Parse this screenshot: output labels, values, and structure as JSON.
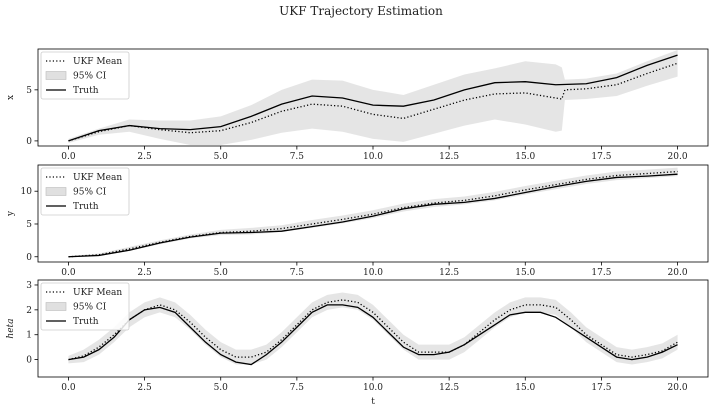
{
  "title": "UKF Trajectory Estimation",
  "chart_data": [
    {
      "type": "line",
      "ylabel": "x",
      "xlabel": "",
      "xlim": [
        -1.0,
        21.0
      ],
      "ylim": [
        -0.5,
        9.0
      ],
      "xticks": [
        0.0,
        2.5,
        5.0,
        7.5,
        10.0,
        12.5,
        15.0,
        17.5,
        20.0
      ],
      "xtick_labels": [
        "0.0",
        "2.5",
        "5.0",
        "7.5",
        "10.0",
        "12.5",
        "15.0",
        "17.5",
        "20.0"
      ],
      "yticks": [
        0,
        5
      ],
      "ytick_labels": [
        "0",
        "5"
      ],
      "legend_position": "top-left",
      "series": [
        {
          "name": "UKF Mean",
          "style": "dotted",
          "x": [
            0,
            1,
            2,
            3,
            4,
            5,
            6,
            7,
            8,
            9,
            10,
            11,
            12,
            13,
            14,
            15,
            16,
            16.2,
            16.3,
            17,
            18,
            19,
            20
          ],
          "y": [
            0,
            0.9,
            1.5,
            1.1,
            0.8,
            1.0,
            1.8,
            2.9,
            3.6,
            3.4,
            2.6,
            2.2,
            3.1,
            4.0,
            4.6,
            4.7,
            4.2,
            4.1,
            5.0,
            5.1,
            5.5,
            6.6,
            7.6
          ]
        },
        {
          "name": "Truth",
          "style": "solid",
          "x": [
            0,
            1,
            2,
            3,
            4,
            5,
            6,
            7,
            8,
            9,
            10,
            11,
            12,
            13,
            14,
            15,
            16,
            17,
            18,
            19,
            20
          ],
          "y": [
            0,
            1.0,
            1.5,
            1.2,
            1.1,
            1.4,
            2.4,
            3.6,
            4.4,
            4.2,
            3.5,
            3.4,
            4.0,
            5.0,
            5.7,
            5.8,
            5.5,
            5.6,
            6.2,
            7.4,
            8.4
          ]
        },
        {
          "name": "95% CI",
          "style": "band",
          "x": [
            0,
            1,
            2,
            3,
            4,
            5,
            6,
            7,
            8,
            9,
            10,
            11,
            12,
            13,
            14,
            15,
            16,
            16.2,
            16.3,
            17,
            18,
            19,
            20
          ],
          "lower": [
            -0.2,
            0.6,
            0.9,
            0.2,
            -0.4,
            -0.4,
            0.1,
            0.8,
            1.2,
            0.9,
            0.2,
            -0.1,
            0.7,
            1.5,
            2.1,
            1.6,
            0.9,
            1.0,
            4.0,
            4.1,
            4.4,
            5.4,
            6.3
          ],
          "upper": [
            0.2,
            1.2,
            2.1,
            2.0,
            2.0,
            2.4,
            3.5,
            5.0,
            6.0,
            5.9,
            5.0,
            4.5,
            5.5,
            6.5,
            7.1,
            7.8,
            7.5,
            7.2,
            6.0,
            6.1,
            6.6,
            7.8,
            8.9
          ]
        }
      ]
    },
    {
      "type": "line",
      "ylabel": "y",
      "xlabel": "",
      "xlim": [
        -1.0,
        21.0
      ],
      "ylim": [
        -0.8,
        14.0
      ],
      "xticks": [
        0.0,
        2.5,
        5.0,
        7.5,
        10.0,
        12.5,
        15.0,
        17.5,
        20.0
      ],
      "xtick_labels": [
        "0.0",
        "2.5",
        "5.0",
        "7.5",
        "10.0",
        "12.5",
        "15.0",
        "17.5",
        "20.0"
      ],
      "yticks": [
        0,
        5,
        10
      ],
      "ytick_labels": [
        "0",
        "5",
        "10"
      ],
      "legend_position": "top-left",
      "series": [
        {
          "name": "UKF Mean",
          "style": "dotted",
          "x": [
            0,
            1,
            2,
            3,
            4,
            5,
            6,
            7,
            8,
            9,
            10,
            11,
            12,
            13,
            14,
            15,
            16,
            17,
            18,
            19,
            20
          ],
          "y": [
            0,
            0.3,
            1.2,
            2.2,
            3.1,
            3.7,
            3.9,
            4.3,
            5.0,
            5.7,
            6.5,
            7.5,
            8.2,
            8.6,
            9.3,
            10.2,
            11.0,
            11.8,
            12.4,
            12.7,
            13.0
          ]
        },
        {
          "name": "Truth",
          "style": "solid",
          "x": [
            0,
            1,
            2,
            3,
            4,
            5,
            6,
            7,
            8,
            9,
            10,
            11,
            12,
            13,
            14,
            15,
            16,
            17,
            18,
            19,
            20
          ],
          "y": [
            0,
            0.2,
            1.0,
            2.1,
            3.0,
            3.6,
            3.7,
            3.9,
            4.6,
            5.3,
            6.2,
            7.3,
            8.0,
            8.3,
            8.9,
            9.8,
            10.7,
            11.5,
            12.1,
            12.3,
            12.6
          ]
        },
        {
          "name": "95% CI",
          "style": "band",
          "x": [
            0,
            1,
            2,
            3,
            4,
            5,
            6,
            7,
            8,
            9,
            10,
            11,
            12,
            13,
            14,
            15,
            16,
            17,
            18,
            19,
            20
          ],
          "lower": [
            -0.1,
            0.1,
            0.9,
            1.9,
            2.8,
            3.3,
            3.4,
            3.8,
            4.4,
            5.1,
            5.9,
            6.9,
            7.6,
            8.0,
            8.6,
            9.5,
            10.3,
            11.1,
            11.7,
            12.0,
            12.3
          ],
          "upper": [
            0.1,
            0.5,
            1.5,
            2.5,
            3.4,
            4.1,
            4.4,
            4.8,
            5.6,
            6.3,
            7.1,
            8.1,
            8.8,
            9.2,
            9.9,
            10.8,
            11.6,
            12.4,
            13.0,
            13.3,
            13.6
          ]
        }
      ]
    },
    {
      "type": "line",
      "ylabel": "heta",
      "xlabel": "t",
      "xlim": [
        -1.0,
        21.0
      ],
      "ylim": [
        -0.7,
        3.2
      ],
      "xticks": [
        0.0,
        2.5,
        5.0,
        7.5,
        10.0,
        12.5,
        15.0,
        17.5,
        20.0
      ],
      "xtick_labels": [
        "0.0",
        "2.5",
        "5.0",
        "7.5",
        "10.0",
        "12.5",
        "15.0",
        "17.5",
        "20.0"
      ],
      "yticks": [
        0,
        1,
        2,
        3
      ],
      "ytick_labels": [
        "0",
        "1",
        "2",
        "3"
      ],
      "legend_position": "top-left",
      "series": [
        {
          "name": "UKF Mean",
          "style": "dotted",
          "x": [
            0,
            0.5,
            1,
            1.5,
            2,
            2.5,
            3,
            3.5,
            4,
            4.5,
            5,
            5.5,
            6,
            6.5,
            7,
            7.5,
            8,
            8.5,
            9,
            9.5,
            10,
            10.5,
            11,
            11.5,
            12,
            12.5,
            13,
            13.5,
            14,
            14.5,
            15,
            15.5,
            16,
            16.5,
            17,
            17.5,
            18,
            18.5,
            19,
            19.5,
            20
          ],
          "y": [
            0.0,
            0.15,
            0.5,
            1.0,
            1.6,
            2.0,
            2.2,
            2.0,
            1.5,
            0.9,
            0.4,
            0.1,
            0.1,
            0.3,
            0.8,
            1.4,
            2.0,
            2.3,
            2.4,
            2.3,
            1.9,
            1.3,
            0.7,
            0.3,
            0.3,
            0.3,
            0.6,
            1.1,
            1.6,
            2.0,
            2.2,
            2.2,
            2.1,
            1.6,
            1.0,
            0.6,
            0.2,
            0.1,
            0.2,
            0.35,
            0.7
          ]
        },
        {
          "name": "Truth",
          "style": "solid",
          "x": [
            0,
            0.5,
            1,
            1.5,
            2,
            2.5,
            3,
            3.5,
            4,
            4.5,
            5,
            5.5,
            6,
            6.5,
            7,
            7.5,
            8,
            8.5,
            9,
            9.5,
            10,
            10.5,
            11,
            11.5,
            12,
            12.5,
            13,
            13.5,
            14,
            14.5,
            15,
            15.5,
            16,
            16.5,
            17,
            17.5,
            18,
            18.5,
            19,
            19.5,
            20
          ],
          "y": [
            0.0,
            0.1,
            0.4,
            0.9,
            1.6,
            2.0,
            2.1,
            1.9,
            1.3,
            0.7,
            0.2,
            -0.1,
            -0.2,
            0.2,
            0.7,
            1.3,
            1.9,
            2.2,
            2.2,
            2.1,
            1.7,
            1.1,
            0.5,
            0.2,
            0.2,
            0.3,
            0.6,
            1.0,
            1.4,
            1.8,
            1.9,
            1.9,
            1.7,
            1.3,
            0.9,
            0.5,
            0.1,
            0.0,
            0.1,
            0.3,
            0.6
          ]
        },
        {
          "name": "95% CI",
          "style": "band",
          "x": [
            0,
            0.5,
            1,
            1.5,
            2,
            2.5,
            3,
            3.5,
            4,
            4.5,
            5,
            5.5,
            6,
            6.5,
            7,
            7.5,
            8,
            8.5,
            9,
            9.5,
            10,
            10.5,
            11,
            11.5,
            12,
            12.5,
            13,
            13.5,
            14,
            14.5,
            15,
            15.5,
            16,
            16.5,
            17,
            17.5,
            18,
            18.5,
            19,
            19.5,
            20
          ],
          "lower": [
            -0.15,
            -0.1,
            0.2,
            0.7,
            1.3,
            1.7,
            1.9,
            1.7,
            1.2,
            0.6,
            0.1,
            -0.2,
            -0.2,
            0.0,
            0.5,
            1.1,
            1.7,
            2.0,
            2.1,
            2.0,
            1.6,
            1.0,
            0.4,
            0.0,
            0.0,
            0.0,
            0.3,
            0.8,
            1.3,
            1.7,
            1.9,
            1.9,
            1.8,
            1.3,
            0.7,
            0.3,
            -0.1,
            -0.2,
            -0.1,
            0.05,
            0.4
          ],
          "upper": [
            0.15,
            0.4,
            0.8,
            1.3,
            1.9,
            2.3,
            2.5,
            2.3,
            1.8,
            1.2,
            0.7,
            0.4,
            0.4,
            0.6,
            1.1,
            1.7,
            2.3,
            2.6,
            2.7,
            2.6,
            2.2,
            1.6,
            1.0,
            0.6,
            0.6,
            0.6,
            0.9,
            1.4,
            1.9,
            2.3,
            2.5,
            2.5,
            2.4,
            1.9,
            1.3,
            0.9,
            0.5,
            0.4,
            0.5,
            0.65,
            1.0
          ]
        }
      ]
    }
  ]
}
